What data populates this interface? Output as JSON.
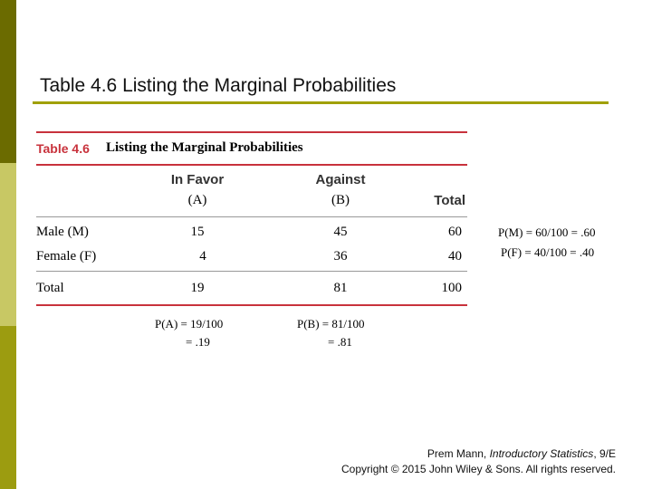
{
  "slide": {
    "title": "Table 4.6 Listing the Marginal Probabilities"
  },
  "table": {
    "label": "Table 4.6",
    "caption": "Listing the Marginal Probabilities",
    "header": {
      "col1_top": "In Favor",
      "col1_sub": "(A)",
      "col2_top": "Against",
      "col2_sub": "(B)",
      "col3": "Total"
    },
    "rows": [
      {
        "label": "Male (M)",
        "a": "15",
        "b": "45",
        "total": "60",
        "marginal": "P(M) = 60/100 = .60"
      },
      {
        "label": "Female (F)",
        "a": "4",
        "b": "36",
        "total": "40",
        "marginal": "P(F) = 40/100 = .40"
      },
      {
        "label": "Total",
        "a": "19",
        "b": "81",
        "total": "100"
      }
    ],
    "bottom": {
      "pa_line1": "P(A) = 19/100",
      "pa_line2": "= .19",
      "pb_line1": "P(B) = 81/100",
      "pb_line2": "= .81"
    }
  },
  "footer": {
    "line1_prefix": "Prem Mann, ",
    "line1_italic": "Introductory Statistics",
    "line1_suffix": ", 9/E",
    "line2": "Copyright © 2015 John Wiley & Sons. All rights reserved."
  },
  "colors": {
    "sidebar_top": "#6b6b00",
    "sidebar_mid": "#c8c864",
    "sidebar_bottom": "#9c9c10",
    "title_rule": "#a0a000",
    "table_red": "#c8323c"
  }
}
